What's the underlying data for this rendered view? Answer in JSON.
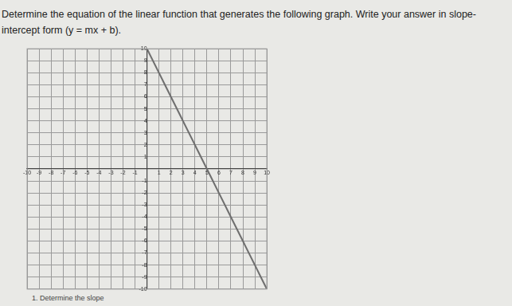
{
  "document": {
    "instruction": "Determine the equation of the linear function that generates the following graph. Write your answer in slope-intercept form (y = mx + b).",
    "step": "1. Determine the slope"
  },
  "chart_data": {
    "type": "line",
    "x": [
      0,
      10
    ],
    "values": [
      10,
      -10
    ],
    "color": "#6e6e6e",
    "xlim": [
      -10,
      10
    ],
    "ylim": [
      -10,
      10
    ],
    "xticks": [
      -10,
      -9,
      -8,
      -7,
      -6,
      -5,
      -4,
      -3,
      -2,
      -1,
      1,
      2,
      3,
      4,
      5,
      6,
      7,
      8,
      9,
      10
    ],
    "yticks": [
      -10,
      -9,
      -8,
      -7,
      -6,
      -5,
      -4,
      -3,
      -2,
      -1,
      1,
      2,
      3,
      4,
      5,
      6,
      7,
      8,
      9,
      10
    ],
    "grid": true
  }
}
